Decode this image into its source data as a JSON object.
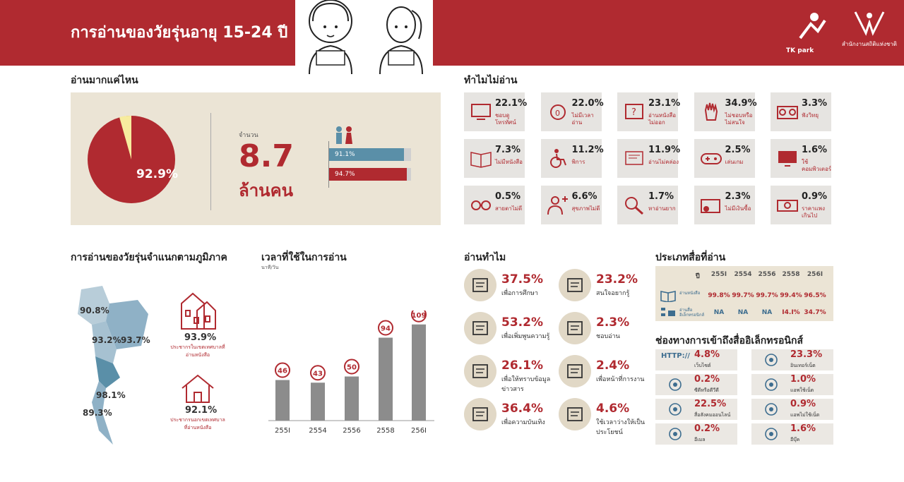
{
  "header": {
    "title": "การอ่านของวัยรุ่นอายุ 15-24 ปี",
    "logo1_text": "TK park",
    "logo2_text": "สำนักงานสถิติแห่งชาติ"
  },
  "colors": {
    "accent": "#b02a30",
    "panel": "#ebe4d5",
    "blue": "#5a8fa8"
  },
  "how_much": {
    "title": "อ่านมากแค่ไหน",
    "pie_label": "92.9%",
    "count_label": "จำนวน",
    "count_value": "8.7",
    "count_unit": "ล้านคน",
    "male_label": "91.1%",
    "female_label": "94.7%"
  },
  "why_not": {
    "title": "ทำไมไม่อ่าน",
    "items": [
      {
        "pct": "22.1%",
        "label": "ชอบดูโทรทัศน์",
        "icon": "tv-icon"
      },
      {
        "pct": "22.0%",
        "label": "ไม่มีเวลาอ่าน",
        "icon": "alarm-clock-icon"
      },
      {
        "pct": "23.1%",
        "label": "อ่านหนังสือไม่ออก",
        "icon": "confused-book-icon"
      },
      {
        "pct": "34.9%",
        "label": "ไม่ชอบหรือไม่สนใจ",
        "icon": "hand-stop-icon"
      },
      {
        "pct": "3.3%",
        "label": "ฟังวิทยุ",
        "icon": "radio-icon"
      },
      {
        "pct": "7.3%",
        "label": "ไม่มีหนังสือ",
        "icon": "open-book-icon"
      },
      {
        "pct": "11.2%",
        "label": "พิการ",
        "icon": "wheelchair-icon"
      },
      {
        "pct": "11.9%",
        "label": "อ่านไม่คล่อง",
        "icon": "struggling-reader-icon"
      },
      {
        "pct": "2.5%",
        "label": "เล่นเกม",
        "icon": "gamepad-icon"
      },
      {
        "pct": "1.6%",
        "label": "ใช้คอมพิวเตอร์",
        "icon": "monitor-icon"
      },
      {
        "pct": "0.5%",
        "label": "สายตาไม่ดี",
        "icon": "glasses-icon"
      },
      {
        "pct": "6.6%",
        "label": "สุขภาพไม่ดี",
        "icon": "sick-person-icon"
      },
      {
        "pct": "1.7%",
        "label": "หาอ่านยาก",
        "icon": "magnifier-icon"
      },
      {
        "pct": "2.3%",
        "label": "ไม่มีเงินซื้อ",
        "icon": "empty-wallet-icon"
      },
      {
        "pct": "0.9%",
        "label": "ราคาแพงเกินไป",
        "icon": "money-icon"
      }
    ]
  },
  "region": {
    "title": "การอ่านของวัยรุ่นจำแนกตามภูมิภาค",
    "map_values": [
      "90.8%",
      "93.2%",
      "93.7%",
      "98.1%",
      "89.3%"
    ],
    "urban_pct": "93.9%",
    "urban_label": "ประชากรในเขตเทศบาลที่อ่านหนังสือ",
    "rural_pct": "92.1%",
    "rural_label": "ประชากรนอกเขตเทศบาลที่อ่านหนังสือ"
  },
  "chart_data": {
    "type": "bar",
    "title": "เวลาที่ใช้ในการอ่าน",
    "ylabel": "นาที/วัน",
    "categories": [
      "2551",
      "2554",
      "2556",
      "2558",
      "2561"
    ],
    "category_labels": [
      "255I",
      "2554",
      "2556",
      "2558",
      "256I"
    ],
    "values": [
      46,
      43,
      50,
      94,
      109
    ],
    "value_labels": [
      "46",
      "43",
      "50",
      "94",
      "109"
    ],
    "ylim": [
      0,
      120
    ]
  },
  "why_read": {
    "title": "อ่านทำไม",
    "items": [
      {
        "pct": "37.5%",
        "label": "เพื่อการศึกษา",
        "icon": "graduation-cap-icon"
      },
      {
        "pct": "23.2%",
        "label": "สนใจอยากรู้",
        "icon": "book-icon"
      },
      {
        "pct": "53.2%",
        "label": "เพื่อเพิ่มพูนความรู้",
        "icon": "lightbulb-icon"
      },
      {
        "pct": "2.3%",
        "label": "ชอบอ่าน",
        "icon": "star-book-icon"
      },
      {
        "pct": "26.1%",
        "label": "เพื่อให้ทราบข้อมูลข่าวสาร",
        "icon": "newspaper-icon"
      },
      {
        "pct": "2.4%",
        "label": "เพื่อหน้าที่การงาน",
        "icon": "worker-icon"
      },
      {
        "pct": "36.4%",
        "label": "เพื่อความบันเทิง",
        "icon": "theater-masks-icon"
      },
      {
        "pct": "4.6%",
        "label": "ใช้เวลาว่างให้เป็นประโยชน์",
        "icon": "coffee-cup-icon"
      }
    ]
  },
  "media_type": {
    "title": "ประเภทสื่อที่อ่าน",
    "year_label": "ปี",
    "years": [
      "255I",
      "2554",
      "2556",
      "2558",
      "256I"
    ],
    "rows": [
      {
        "label": "อ่านหนังสือ",
        "values": [
          "99.8%",
          "99.7%",
          "99.7%",
          "99.4%",
          "96.5%"
        ]
      },
      {
        "label": "อ่านสื่ออิเล็กทรอนิกส์",
        "values": [
          "NA",
          "NA",
          "NA",
          "I4.I%",
          "34.7%"
        ]
      }
    ]
  },
  "channels": {
    "title": "ช่องทางการเข้าถึงสื่ออิเล็กทรอนิกส์",
    "http_text": "HTTP://",
    "items": [
      {
        "pct": "4.8%",
        "label": "เว็บไซต์",
        "icon": "http-icon"
      },
      {
        "pct": "23.3%",
        "label": "อินเทอร์เน็ต",
        "icon": "globe-icon"
      },
      {
        "pct": "0.2%",
        "label": "ซีดีหรือดีวีดี",
        "icon": "cd-icon"
      },
      {
        "pct": "1.0%",
        "label": "แอพใช้เน็ต",
        "icon": "phone-app-icon"
      },
      {
        "pct": "22.5%",
        "label": "สื่อสังคมออนไลน์",
        "icon": "user-circle-icon"
      },
      {
        "pct": "0.9%",
        "label": "แอพไม่ใช้เน็ต",
        "icon": "phone-offline-icon"
      },
      {
        "pct": "0.2%",
        "label": "อีเมล",
        "icon": "email-icon"
      },
      {
        "pct": "1.6%",
        "label": "อีบุ๊ค",
        "icon": "ebook-icon"
      }
    ]
  }
}
